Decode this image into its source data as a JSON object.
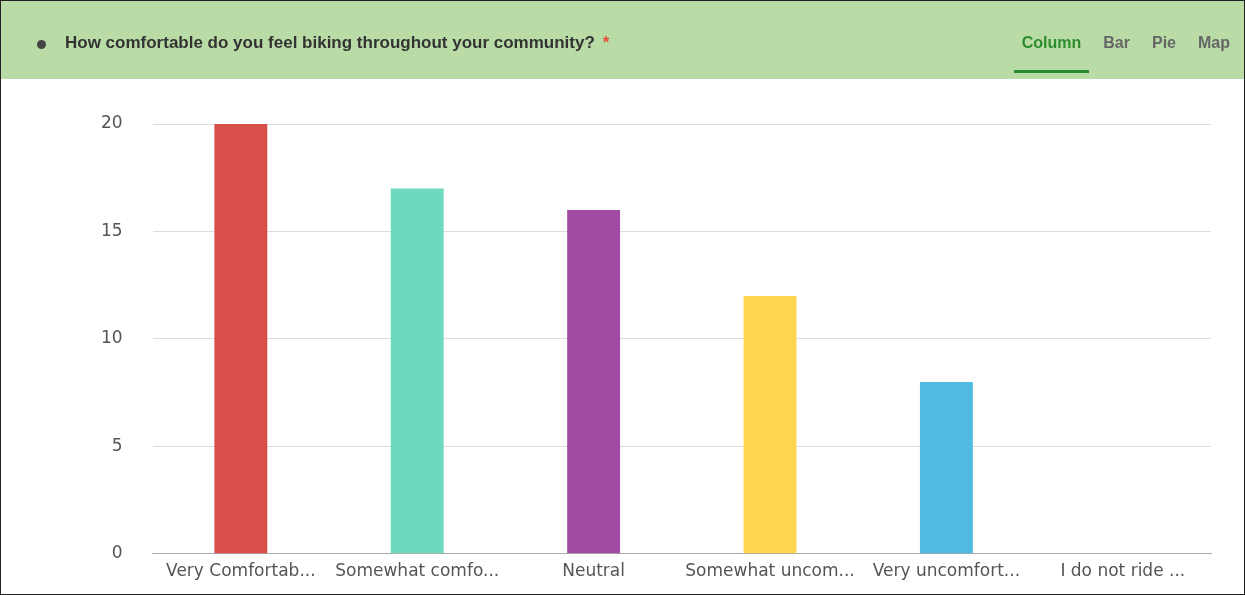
{
  "chart_data": {
    "type": "bar",
    "title": "How comfortable do you feel biking throughout your community?",
    "annotations": [
      "*",
      "Column",
      "Bar",
      "Pie",
      "Map"
    ],
    "categories": [
      "Very Comfortab...",
      "Somewhat comfo...",
      "Neutral",
      "Somewhat uncom...",
      "Very uncomfort...",
      "I do not ride ..."
    ],
    "values": [
      20,
      17,
      16,
      12,
      8,
      0
    ],
    "colors": [
      "#d84e4b",
      "#6fd9c0",
      "#a34ba3",
      "#fed54e",
      "#4fbbe3",
      "#8f8f8f"
    ],
    "ylim": [
      0,
      20
    ],
    "yticks": [
      0,
      5,
      10,
      15,
      20
    ],
    "grid": "y",
    "legend": false
  }
}
